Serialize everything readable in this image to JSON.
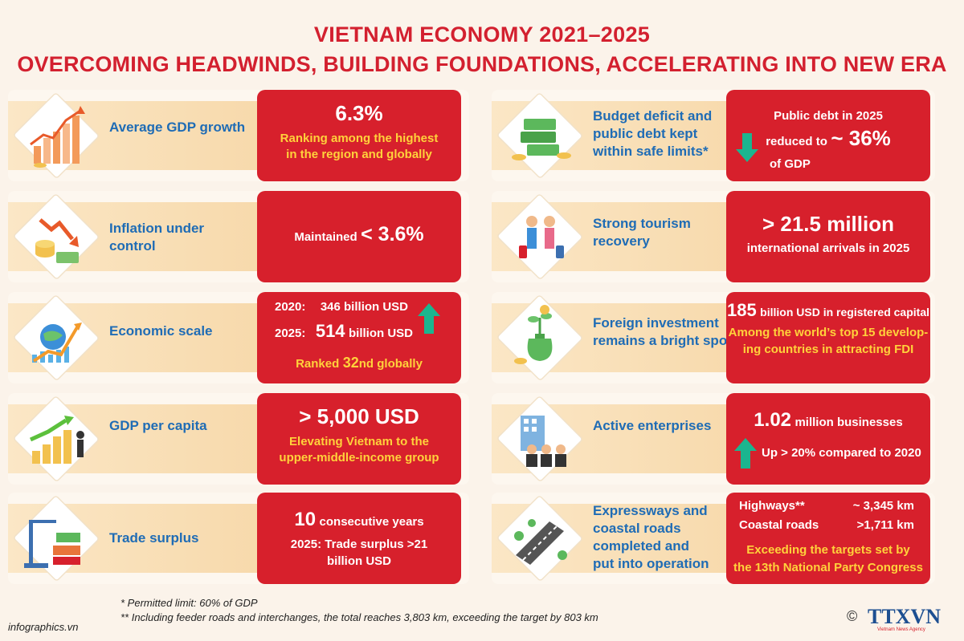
{
  "title": {
    "line1": "VIETNAM ECONOMY 2021–2025",
    "line2": "OVERCOMING HEADWINDS, BUILDING FOUNDATIONS, ACCELERATING INTO NEW ERA"
  },
  "left": [
    {
      "label": "Average GDP growth",
      "value": "6.3%",
      "desc_l1": "Ranking among the highest",
      "desc_l2": "in the region and globally",
      "icon": "bar-growth-chart-icon"
    },
    {
      "label_l1": "Inflation under",
      "label_l2": "control",
      "prefix": "Maintained",
      "value": "< 3.6%",
      "icon": "coins-down-arrow-icon"
    },
    {
      "label": "Economic scale",
      "r1_year": "2020:",
      "r1_val": "346 billion USD",
      "r2_year": "2025:",
      "r2_num": "514",
      "r2_unit": "billion USD",
      "rank_pre": "Ranked",
      "rank_num": "32",
      "rank_post": "nd globally",
      "icon": "globe-chart-icon"
    },
    {
      "label": "GDP per capita",
      "value": "> 5,000 USD",
      "desc_l1": "Elevating Vietnam to the",
      "desc_l2": "upper-middle-income group",
      "icon": "coin-stack-growth-icon"
    },
    {
      "label": "Trade surplus",
      "num": "10",
      "num_post": "consecutive years",
      "desc_l1": "2025: Trade surplus >21",
      "desc_l2": "billion  USD",
      "icon": "container-crane-icon"
    }
  ],
  "right": [
    {
      "label_l1": "Budget deficit and",
      "label_l2": "public debt kept",
      "label_l3": "within safe limits*",
      "line1": "Public debt in 2025",
      "line2_pre": "reduced to",
      "line2_val": "~ 36%",
      "line3": "of GDP",
      "icon": "money-stacks-icon"
    },
    {
      "label_l1": "Strong tourism",
      "label_l2": "recovery",
      "value": "> 21.5 million",
      "desc": "international arrivals in 2025",
      "icon": "tourists-icon"
    },
    {
      "label_l1": "Foreign investment",
      "label_l2": "remains a bright spot",
      "num": "185",
      "num_post": "billion USD in registered capital",
      "desc_l1": "Among the world’s top 15 develop-",
      "desc_l2": "ing countries in attracting FDI",
      "icon": "money-bag-plant-icon"
    },
    {
      "label": "Active enterprises",
      "num": "1.02",
      "num_post": "million businesses",
      "desc": "Up > 20% compared to 2020",
      "icon": "business-people-building-icon"
    },
    {
      "label_l1": "Expressways and",
      "label_l2": "coastal roads",
      "label_l3": "completed and",
      "label_l4": "put into operation",
      "r1_name": "Highways**",
      "r1_val": "~ 3,345 km",
      "r2_name": "Coastal roads",
      "r2_val": ">1,711 km",
      "desc_l1": "Exceeding the targets set by",
      "desc_l2": "the 13th National Party Congress",
      "icon": "expressway-icon"
    }
  ],
  "footnotes": {
    "n1": "* Permitted limit: 60% of GDP",
    "n2": "** Including feeder roads and interchanges, the total reaches 3,803 km, exceeding the target by 803 km"
  },
  "brand": "infographics.vn",
  "logo": {
    "copyright": "©",
    "name": "TTXVN",
    "sub": "Vietnam News Agency"
  },
  "colors": {
    "red": "#d7202c",
    "yellow": "#ffd23b",
    "blue": "#1f6cb5",
    "teal": "#1bb58f"
  }
}
